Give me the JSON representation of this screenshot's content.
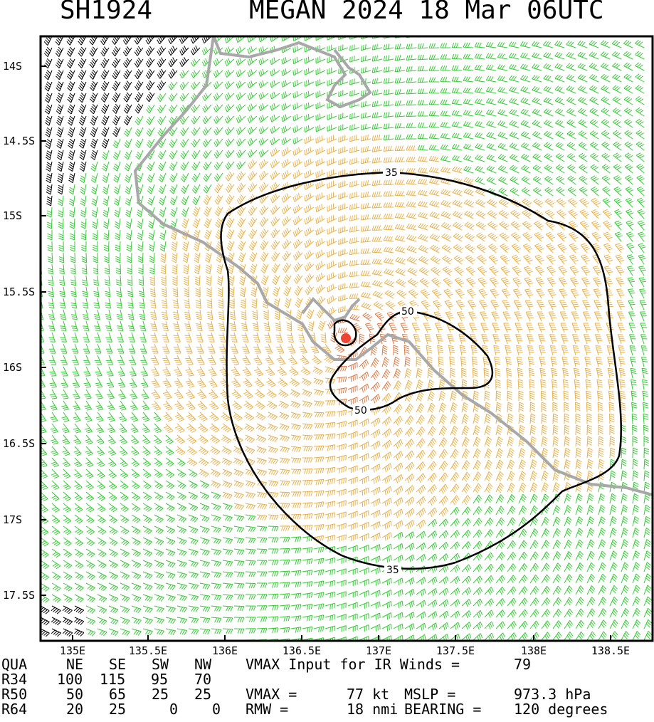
{
  "header": {
    "storm_id": "SH1924",
    "title": "MEGAN 2024 18 Mar 06UTC"
  },
  "map": {
    "lat_labels": [
      "14S",
      "14.5S",
      "15S",
      "15.5S",
      "16S",
      "16.5S",
      "17S",
      "17.5S"
    ],
    "lon_labels": [
      "135E",
      "135.5E",
      "136E",
      "136.5E",
      "137E",
      "137.5E",
      "138E",
      "138.5E"
    ],
    "contour_labels": [
      "35",
      "50",
      "50",
      "35"
    ],
    "colors": {
      "wind_low": "#33cc33",
      "wind_34": "#e8b14a",
      "wind_50": "#e07a45",
      "wind_strong": "#000000",
      "coastline": "#a8a8a8",
      "center": "#ee4433",
      "contour": "#000000"
    }
  },
  "table": {
    "headers": [
      "QUA",
      "NE",
      "SE",
      "SW",
      "NW"
    ],
    "rows": [
      {
        "label": "R34",
        "values": [
          "100",
          "115",
          "95",
          "70"
        ]
      },
      {
        "label": "R50",
        "values": [
          "50",
          "65",
          "25",
          "25"
        ]
      },
      {
        "label": "R64",
        "values": [
          "20",
          "25",
          "0",
          "0"
        ]
      }
    ],
    "vmax_input_text": "VMAX Input for IR Winds =",
    "vmax_input_value": "79",
    "vmax_text": "VMAX =",
    "vmax_value": "77 kt",
    "mslp_text": "MSLP =",
    "mslp_value": "973.3 hPa",
    "rmw_text": "RMW =",
    "rmw_value": "18 nmi",
    "bearing_text": "BEARING =",
    "bearing_value": "120 degrees"
  }
}
